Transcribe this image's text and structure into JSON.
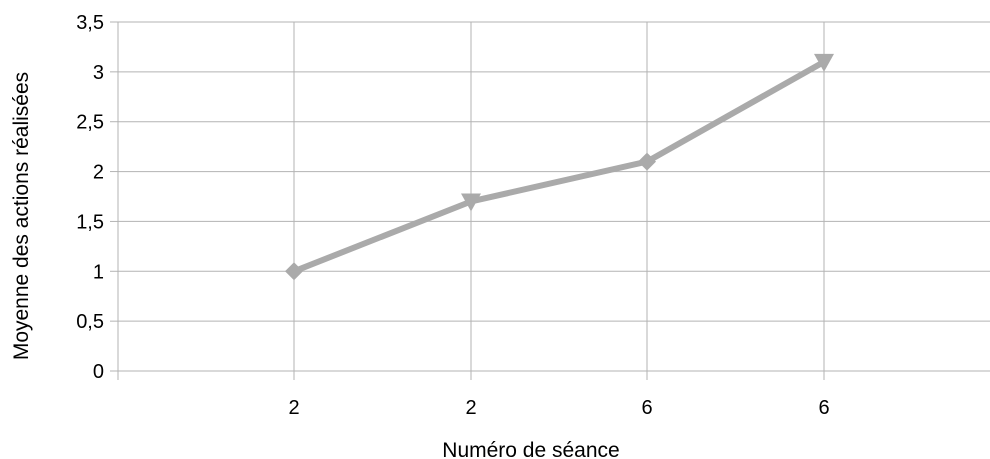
{
  "chart_data": {
    "type": "line",
    "title": "",
    "xlabel": "Numéro de séance",
    "ylabel": "Moyenne des actions réalisées",
    "categories": [
      "2",
      "2",
      "6",
      "6"
    ],
    "series": [
      {
        "values": [
          1,
          1.7,
          2.1,
          3.1
        ],
        "color": "#aaaaaa",
        "markers": [
          "diamond",
          "triangle-down",
          "diamond",
          "triangle-down"
        ]
      }
    ],
    "ylim": [
      0,
      3.5
    ],
    "yticks": [
      "0",
      "0,5",
      "1",
      "1,5",
      "2",
      "2,5",
      "3",
      "3,5"
    ],
    "grid": true,
    "legend": "none"
  }
}
